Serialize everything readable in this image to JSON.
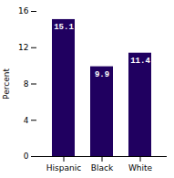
{
  "chart_data": {
    "type": "bar",
    "categories": [
      "Hispanic",
      "Black",
      "White"
    ],
    "values": [
      15.1,
      9.9,
      11.4
    ],
    "color": "#200060",
    "ylabel": "Percent",
    "ylim": [
      0,
      16
    ],
    "yticks": [
      0,
      4,
      8,
      12,
      16
    ],
    "data_labels": true
  }
}
